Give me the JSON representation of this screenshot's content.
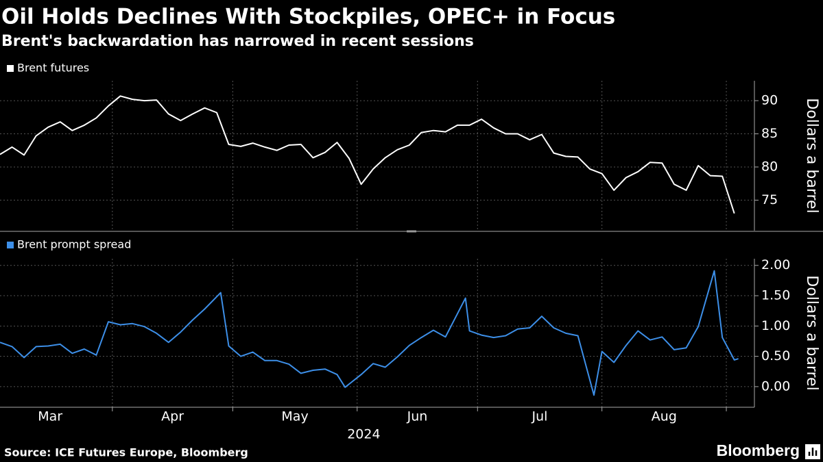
{
  "title": "Oil Holds Declines With Stockpiles, OPEC+ in Focus",
  "subtitle": "Brent's backwardation has narrowed in recent sessions",
  "source": "Source: ICE Futures Europe, Bloomberg",
  "brand": "Bloomberg",
  "chart_data": [
    {
      "type": "line",
      "ylabel": "Dollars a barrel",
      "x": [
        "2024-03-04",
        "2024-03-07",
        "2024-03-10",
        "2024-03-13",
        "2024-03-16",
        "2024-03-19",
        "2024-03-22",
        "2024-03-25",
        "2024-03-28",
        "2024-03-31",
        "2024-04-03",
        "2024-04-06",
        "2024-04-09",
        "2024-04-12",
        "2024-04-15",
        "2024-04-18",
        "2024-04-21",
        "2024-04-24",
        "2024-04-27",
        "2024-04-30",
        "2024-05-03",
        "2024-05-06",
        "2024-05-09",
        "2024-05-12",
        "2024-05-15",
        "2024-05-18",
        "2024-05-21",
        "2024-05-24",
        "2024-05-27",
        "2024-05-30",
        "2024-06-02",
        "2024-06-05",
        "2024-06-08",
        "2024-06-11",
        "2024-06-14",
        "2024-06-17",
        "2024-06-20",
        "2024-06-23",
        "2024-06-26",
        "2024-06-29",
        "2024-07-02",
        "2024-07-05",
        "2024-07-08",
        "2024-07-11",
        "2024-07-14",
        "2024-07-17",
        "2024-07-20",
        "2024-07-23",
        "2024-07-26",
        "2024-07-29",
        "2024-08-01",
        "2024-08-04",
        "2024-08-07",
        "2024-08-10",
        "2024-08-13",
        "2024-08-16",
        "2024-08-19",
        "2024-08-22",
        "2024-08-25",
        "2024-08-28",
        "2024-08-31",
        "2024-09-03"
      ],
      "series": [
        {
          "name": "Brent futures",
          "color": "#ffffff",
          "values": [
            81.9,
            83.0,
            81.8,
            84.7,
            86.0,
            86.8,
            85.5,
            86.3,
            87.4,
            89.2,
            90.7,
            90.2,
            90.0,
            90.1,
            88.0,
            87.0,
            88.0,
            88.9,
            88.2,
            83.4,
            83.1,
            83.6,
            83.0,
            82.5,
            83.3,
            83.4,
            81.4,
            82.2,
            83.7,
            81.3,
            77.4,
            79.7,
            81.4,
            82.6,
            83.3,
            85.2,
            85.5,
            85.3,
            86.3,
            86.3,
            87.2,
            85.9,
            85.0,
            85.0,
            84.1,
            84.9,
            82.1,
            81.6,
            81.5,
            79.7,
            79.0,
            76.5,
            78.4,
            79.3,
            80.7,
            80.6,
            77.4,
            76.5,
            80.2,
            78.7,
            78.6,
            73.0
          ]
        }
      ],
      "xlim": [
        "2024-03-04",
        "2024-09-08"
      ],
      "ylim": [
        70.4,
        93
      ],
      "yticks": [
        75,
        80,
        85,
        90
      ],
      "grid": true
    },
    {
      "type": "line",
      "ylabel": "Dollars a barrel",
      "xlabel": "2024",
      "x": [
        "2024-03-04",
        "2024-03-07",
        "2024-03-10",
        "2024-03-13",
        "2024-03-16",
        "2024-03-19",
        "2024-03-22",
        "2024-03-25",
        "2024-03-28",
        "2024-03-31",
        "2024-04-03",
        "2024-04-06",
        "2024-04-09",
        "2024-04-12",
        "2024-04-15",
        "2024-04-18",
        "2024-04-21",
        "2024-04-24",
        "2024-04-28",
        "2024-04-30",
        "2024-05-03",
        "2024-05-06",
        "2024-05-09",
        "2024-05-12",
        "2024-05-15",
        "2024-05-18",
        "2024-05-21",
        "2024-05-24",
        "2024-05-27",
        "2024-05-29",
        "2024-06-02",
        "2024-06-05",
        "2024-06-08",
        "2024-06-11",
        "2024-06-14",
        "2024-06-17",
        "2024-06-20",
        "2024-06-23",
        "2024-06-28",
        "2024-06-29",
        "2024-07-02",
        "2024-07-05",
        "2024-07-08",
        "2024-07-11",
        "2024-07-14",
        "2024-07-17",
        "2024-07-20",
        "2024-07-23",
        "2024-07-26",
        "2024-07-30",
        "2024-08-01",
        "2024-08-04",
        "2024-08-07",
        "2024-08-10",
        "2024-08-13",
        "2024-08-16",
        "2024-08-19",
        "2024-08-22",
        "2024-08-25",
        "2024-08-29",
        "2024-08-31",
        "2024-09-03",
        "2024-09-04"
      ],
      "series": [
        {
          "name": "Brent prompt spread",
          "color": "#3d8fe8",
          "values": [
            0.73,
            0.66,
            0.48,
            0.66,
            0.67,
            0.7,
            0.55,
            0.62,
            0.52,
            1.07,
            1.02,
            1.04,
            0.99,
            0.88,
            0.73,
            0.9,
            1.1,
            1.28,
            1.55,
            0.67,
            0.5,
            0.57,
            0.43,
            0.43,
            0.37,
            0.22,
            0.27,
            0.29,
            0.2,
            -0.01,
            0.2,
            0.38,
            0.32,
            0.49,
            0.68,
            0.81,
            0.93,
            0.82,
            1.46,
            0.92,
            0.85,
            0.81,
            0.84,
            0.95,
            0.97,
            1.16,
            0.97,
            0.88,
            0.84,
            -0.14,
            0.58,
            0.4,
            0.68,
            0.92,
            0.77,
            0.82,
            0.61,
            0.64,
            0.99,
            1.91,
            0.81,
            0.44,
            0.46
          ]
        }
      ],
      "xlim": [
        "2024-03-04",
        "2024-09-08"
      ],
      "xticks": [
        {
          "value": "2024-03-01",
          "label": "Mar"
        },
        {
          "value": "2024-04-01",
          "label": "Apr"
        },
        {
          "value": "2024-05-01",
          "label": "May"
        },
        {
          "value": "2024-06-01",
          "label": "Jun"
        },
        {
          "value": "2024-07-01",
          "label": "Jul"
        },
        {
          "value": "2024-08-01",
          "label": "Aug"
        }
      ],
      "ylim": [
        -0.34,
        2.11
      ],
      "yticks": [
        {
          "value": 0,
          "label": "0.00"
        },
        {
          "value": 0.5,
          "label": "0.50"
        },
        {
          "value": 1,
          "label": "1.00"
        },
        {
          "value": 1.5,
          "label": "1.50"
        },
        {
          "value": 2,
          "label": "2.00"
        }
      ],
      "grid": true
    }
  ]
}
